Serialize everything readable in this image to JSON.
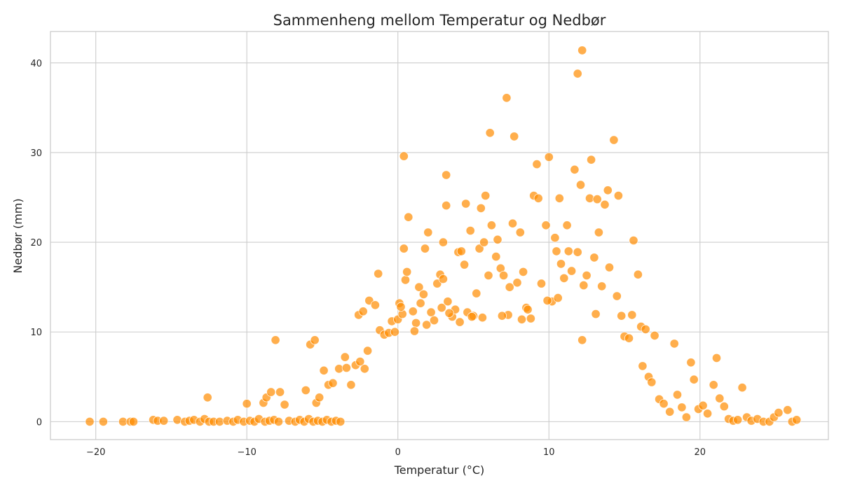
{
  "chart_data": {
    "type": "scatter",
    "title": "Sammenheng mellom Temperatur og Nedbør",
    "xlabel": "Temperatur (°C)",
    "ylabel": "Nedbør (mm)",
    "xlim": [
      -23,
      28.5
    ],
    "ylim": [
      -2,
      43.5
    ],
    "xticks": [
      -20,
      -10,
      0,
      10,
      20
    ],
    "yticks": [
      0,
      10,
      20,
      30,
      40
    ],
    "xtick_labels": [
      "−20",
      "−10",
      "0",
      "10",
      "20"
    ],
    "ytick_labels": [
      "0",
      "10",
      "20",
      "30",
      "40"
    ],
    "grid": true,
    "color": "#ff8c00",
    "series": [
      {
        "points": [
          [
            -20.4,
            0
          ],
          [
            -19.5,
            0
          ],
          [
            -18.2,
            0
          ],
          [
            -17.7,
            0
          ],
          [
            -17.5,
            0
          ],
          [
            -16.2,
            0.2
          ],
          [
            -15.9,
            0.1
          ],
          [
            -15.5,
            0.1
          ],
          [
            -14.6,
            0.2
          ],
          [
            -14.1,
            0
          ],
          [
            -13.8,
            0.1
          ],
          [
            -13.5,
            0.2
          ],
          [
            -13.1,
            0
          ],
          [
            -12.8,
            0.3
          ],
          [
            -12.5,
            0
          ],
          [
            -12.2,
            0
          ],
          [
            -12.6,
            2.7
          ],
          [
            -11.8,
            0
          ],
          [
            -11.3,
            0.1
          ],
          [
            -10.9,
            0
          ],
          [
            -10.6,
            0.2
          ],
          [
            -10.2,
            0
          ],
          [
            -9.8,
            0.1
          ],
          [
            -9.5,
            0
          ],
          [
            -9.2,
            0.3
          ],
          [
            -8.8,
            0
          ],
          [
            -8.5,
            0.1
          ],
          [
            -8.2,
            0.2
          ],
          [
            -7.9,
            0
          ],
          [
            -10.0,
            2.0
          ],
          [
            -8.9,
            2.1
          ],
          [
            -8.7,
            2.7
          ],
          [
            -8.4,
            3.3
          ],
          [
            -7.8,
            3.3
          ],
          [
            -7.5,
            1.9
          ],
          [
            -8.1,
            9.1
          ],
          [
            -7.2,
            0.1
          ],
          [
            -6.8,
            0
          ],
          [
            -6.5,
            0.2
          ],
          [
            -6.2,
            0
          ],
          [
            -5.9,
            0.3
          ],
          [
            -5.6,
            0
          ],
          [
            -5.3,
            0.1
          ],
          [
            -5.0,
            0
          ],
          [
            -4.7,
            0.2
          ],
          [
            -4.4,
            0
          ],
          [
            -4.1,
            0.1
          ],
          [
            -3.8,
            0
          ],
          [
            -6.1,
            3.5
          ],
          [
            -5.4,
            2.1
          ],
          [
            -5.2,
            2.7
          ],
          [
            -4.6,
            4.1
          ],
          [
            -4.3,
            4.3
          ],
          [
            -3.9,
            5.9
          ],
          [
            -4.9,
            5.7
          ],
          [
            -3.4,
            6.0
          ],
          [
            -3.1,
            4.1
          ],
          [
            -5.8,
            8.6
          ],
          [
            -5.5,
            9.1
          ],
          [
            -3.5,
            7.2
          ],
          [
            -2.8,
            6.3
          ],
          [
            -2.5,
            6.7
          ],
          [
            -2.2,
            5.9
          ],
          [
            -2.0,
            7.9
          ],
          [
            -2.6,
            11.9
          ],
          [
            -2.3,
            12.3
          ],
          [
            -1.9,
            13.5
          ],
          [
            -1.5,
            13.0
          ],
          [
            -1.2,
            10.2
          ],
          [
            -1.3,
            16.5
          ],
          [
            -0.9,
            9.7
          ],
          [
            -0.6,
            9.9
          ],
          [
            -0.4,
            11.2
          ],
          [
            -0.2,
            10.0
          ],
          [
            0.0,
            11.4
          ],
          [
            0.3,
            12.0
          ],
          [
            0.1,
            13.2
          ],
          [
            0.4,
            19.3
          ],
          [
            0.5,
            15.8
          ],
          [
            0.6,
            16.7
          ],
          [
            0.7,
            22.8
          ],
          [
            0.4,
            29.6
          ],
          [
            1.0,
            12.3
          ],
          [
            1.2,
            11.0
          ],
          [
            1.4,
            15.0
          ],
          [
            1.5,
            13.2
          ],
          [
            1.7,
            14.2
          ],
          [
            1.8,
            19.3
          ],
          [
            2.0,
            21.1
          ],
          [
            2.2,
            12.2
          ],
          [
            2.4,
            11.3
          ],
          [
            2.6,
            15.4
          ],
          [
            2.8,
            16.4
          ],
          [
            3.0,
            15.9
          ],
          [
            3.3,
            13.4
          ],
          [
            3.0,
            20.0
          ],
          [
            3.6,
            11.7
          ],
          [
            3.8,
            12.5
          ],
          [
            3.2,
            24.1
          ],
          [
            3.2,
            27.5
          ],
          [
            4.0,
            18.9
          ],
          [
            4.2,
            19.0
          ],
          [
            4.4,
            17.5
          ],
          [
            4.6,
            12.2
          ],
          [
            4.5,
            24.3
          ],
          [
            4.8,
            21.3
          ],
          [
            5.0,
            11.8
          ],
          [
            5.2,
            14.3
          ],
          [
            5.4,
            19.3
          ],
          [
            5.5,
            23.8
          ],
          [
            5.7,
            20.0
          ],
          [
            5.8,
            25.2
          ],
          [
            6.0,
            16.3
          ],
          [
            6.1,
            32.2
          ],
          [
            6.2,
            21.9
          ],
          [
            6.5,
            18.4
          ],
          [
            6.8,
            17.1
          ],
          [
            6.6,
            20.3
          ],
          [
            7.0,
            16.3
          ],
          [
            7.2,
            36.1
          ],
          [
            7.4,
            15.0
          ],
          [
            7.6,
            22.1
          ],
          [
            7.7,
            31.8
          ],
          [
            7.9,
            15.5
          ],
          [
            8.1,
            21.1
          ],
          [
            8.3,
            16.7
          ],
          [
            8.5,
            12.7
          ],
          [
            8.8,
            11.5
          ],
          [
            9.0,
            25.2
          ],
          [
            9.2,
            28.7
          ],
          [
            9.3,
            24.9
          ],
          [
            9.5,
            15.4
          ],
          [
            10.0,
            29.5
          ],
          [
            9.8,
            21.9
          ],
          [
            10.2,
            13.4
          ],
          [
            10.4,
            20.5
          ],
          [
            10.5,
            19.0
          ],
          [
            10.7,
            24.9
          ],
          [
            10.8,
            17.6
          ],
          [
            11.0,
            16.0
          ],
          [
            11.2,
            21.9
          ],
          [
            11.3,
            19.0
          ],
          [
            11.5,
            16.8
          ],
          [
            11.7,
            28.1
          ],
          [
            11.9,
            18.9
          ],
          [
            11.9,
            38.8
          ],
          [
            12.2,
            41.4
          ],
          [
            12.1,
            26.4
          ],
          [
            12.3,
            15.2
          ],
          [
            12.5,
            16.3
          ],
          [
            12.7,
            24.9
          ],
          [
            12.8,
            29.2
          ],
          [
            13.0,
            18.3
          ],
          [
            13.2,
            24.8
          ],
          [
            13.3,
            21.1
          ],
          [
            13.5,
            15.1
          ],
          [
            13.7,
            24.2
          ],
          [
            13.9,
            25.8
          ],
          [
            14.0,
            17.2
          ],
          [
            14.3,
            31.4
          ],
          [
            14.6,
            25.2
          ],
          [
            14.5,
            14.0
          ],
          [
            14.8,
            11.8
          ],
          [
            15.0,
            9.5
          ],
          [
            15.3,
            9.3
          ],
          [
            15.5,
            11.9
          ],
          [
            15.6,
            20.2
          ],
          [
            15.9,
            16.4
          ],
          [
            16.1,
            10.6
          ],
          [
            16.4,
            10.3
          ],
          [
            16.2,
            6.2
          ],
          [
            16.6,
            5.0
          ],
          [
            16.8,
            4.4
          ],
          [
            17.0,
            9.6
          ],
          [
            17.3,
            2.5
          ],
          [
            17.6,
            2.0
          ],
          [
            18.0,
            1.1
          ],
          [
            18.3,
            8.7
          ],
          [
            18.5,
            3.0
          ],
          [
            18.8,
            1.6
          ],
          [
            19.1,
            0.5
          ],
          [
            19.4,
            6.6
          ],
          [
            19.6,
            4.7
          ],
          [
            19.9,
            1.4
          ],
          [
            20.2,
            1.8
          ],
          [
            20.5,
            0.9
          ],
          [
            20.9,
            4.1
          ],
          [
            21.1,
            7.1
          ],
          [
            21.3,
            2.6
          ],
          [
            21.6,
            1.7
          ],
          [
            21.9,
            0.3
          ],
          [
            22.2,
            0.1
          ],
          [
            22.5,
            0.2
          ],
          [
            22.8,
            3.8
          ],
          [
            23.1,
            0.5
          ],
          [
            23.4,
            0.1
          ],
          [
            23.8,
            0.3
          ],
          [
            24.2,
            0
          ],
          [
            24.6,
            0
          ],
          [
            24.9,
            0.5
          ],
          [
            25.2,
            1.0
          ],
          [
            25.8,
            1.3
          ],
          [
            26.1,
            0
          ],
          [
            26.4,
            0.2
          ],
          [
            13.1,
            12.0
          ],
          [
            12.2,
            9.1
          ],
          [
            10.6,
            13.8
          ],
          [
            9.9,
            13.5
          ],
          [
            8.6,
            12.5
          ],
          [
            8.2,
            11.4
          ],
          [
            7.3,
            11.9
          ],
          [
            6.9,
            11.8
          ],
          [
            5.6,
            11.6
          ],
          [
            4.9,
            11.7
          ],
          [
            4.1,
            11.1
          ],
          [
            3.4,
            12.1
          ],
          [
            2.9,
            12.7
          ],
          [
            1.9,
            10.8
          ],
          [
            1.1,
            10.1
          ],
          [
            0.2,
            12.8
          ]
        ]
      }
    ]
  }
}
